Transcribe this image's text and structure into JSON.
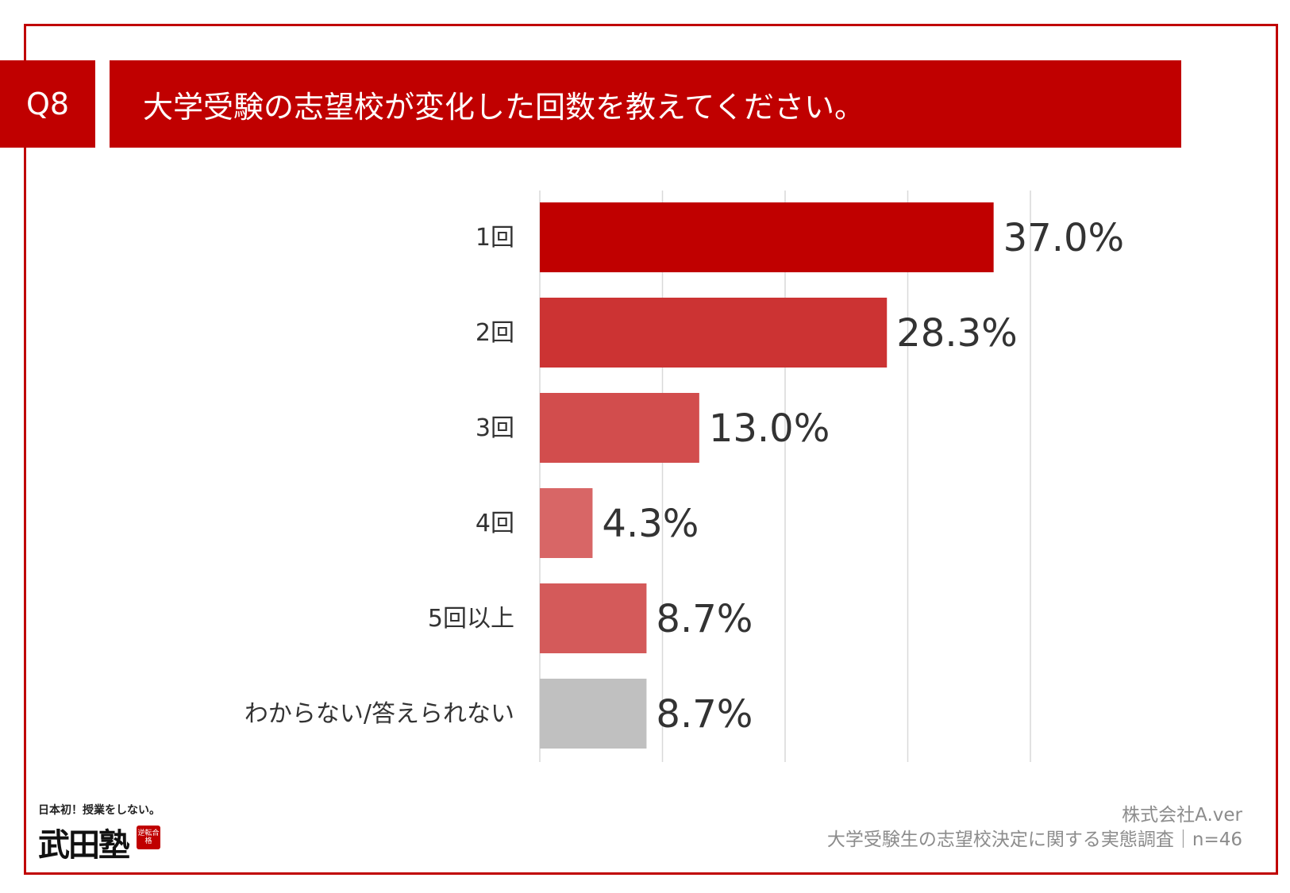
{
  "header": {
    "badge": "Q8",
    "title": "大学受験の志望校が変化した回数を教えてください。"
  },
  "colors": {
    "accent": "#c00000",
    "bars": [
      "#c00000",
      "#cc3333",
      "#d24d4d",
      "#d86666",
      "#d45a5a",
      "#c0c0c0"
    ]
  },
  "chart_data": {
    "type": "bar",
    "orientation": "horizontal",
    "categories": [
      "1回",
      "2回",
      "3回",
      "4回",
      "5回以上",
      "わからない/答えられない"
    ],
    "values": [
      37.0,
      28.3,
      13.0,
      4.3,
      8.7,
      8.7
    ],
    "labels": [
      "37.0%",
      "28.3%",
      "13.0%",
      "4.3%",
      "8.7%",
      "8.7%"
    ],
    "title": "",
    "xlabel": "",
    "ylabel": "",
    "xlim": [
      0,
      40
    ],
    "grid": true
  },
  "logo": {
    "tagline": "日本初！授業をしない。",
    "name": "武田塾",
    "seal": "逆転合格"
  },
  "footer": {
    "company": "株式会社A.ver",
    "survey": "大学受験生の志望校決定に関する実態調査｜n=46"
  }
}
